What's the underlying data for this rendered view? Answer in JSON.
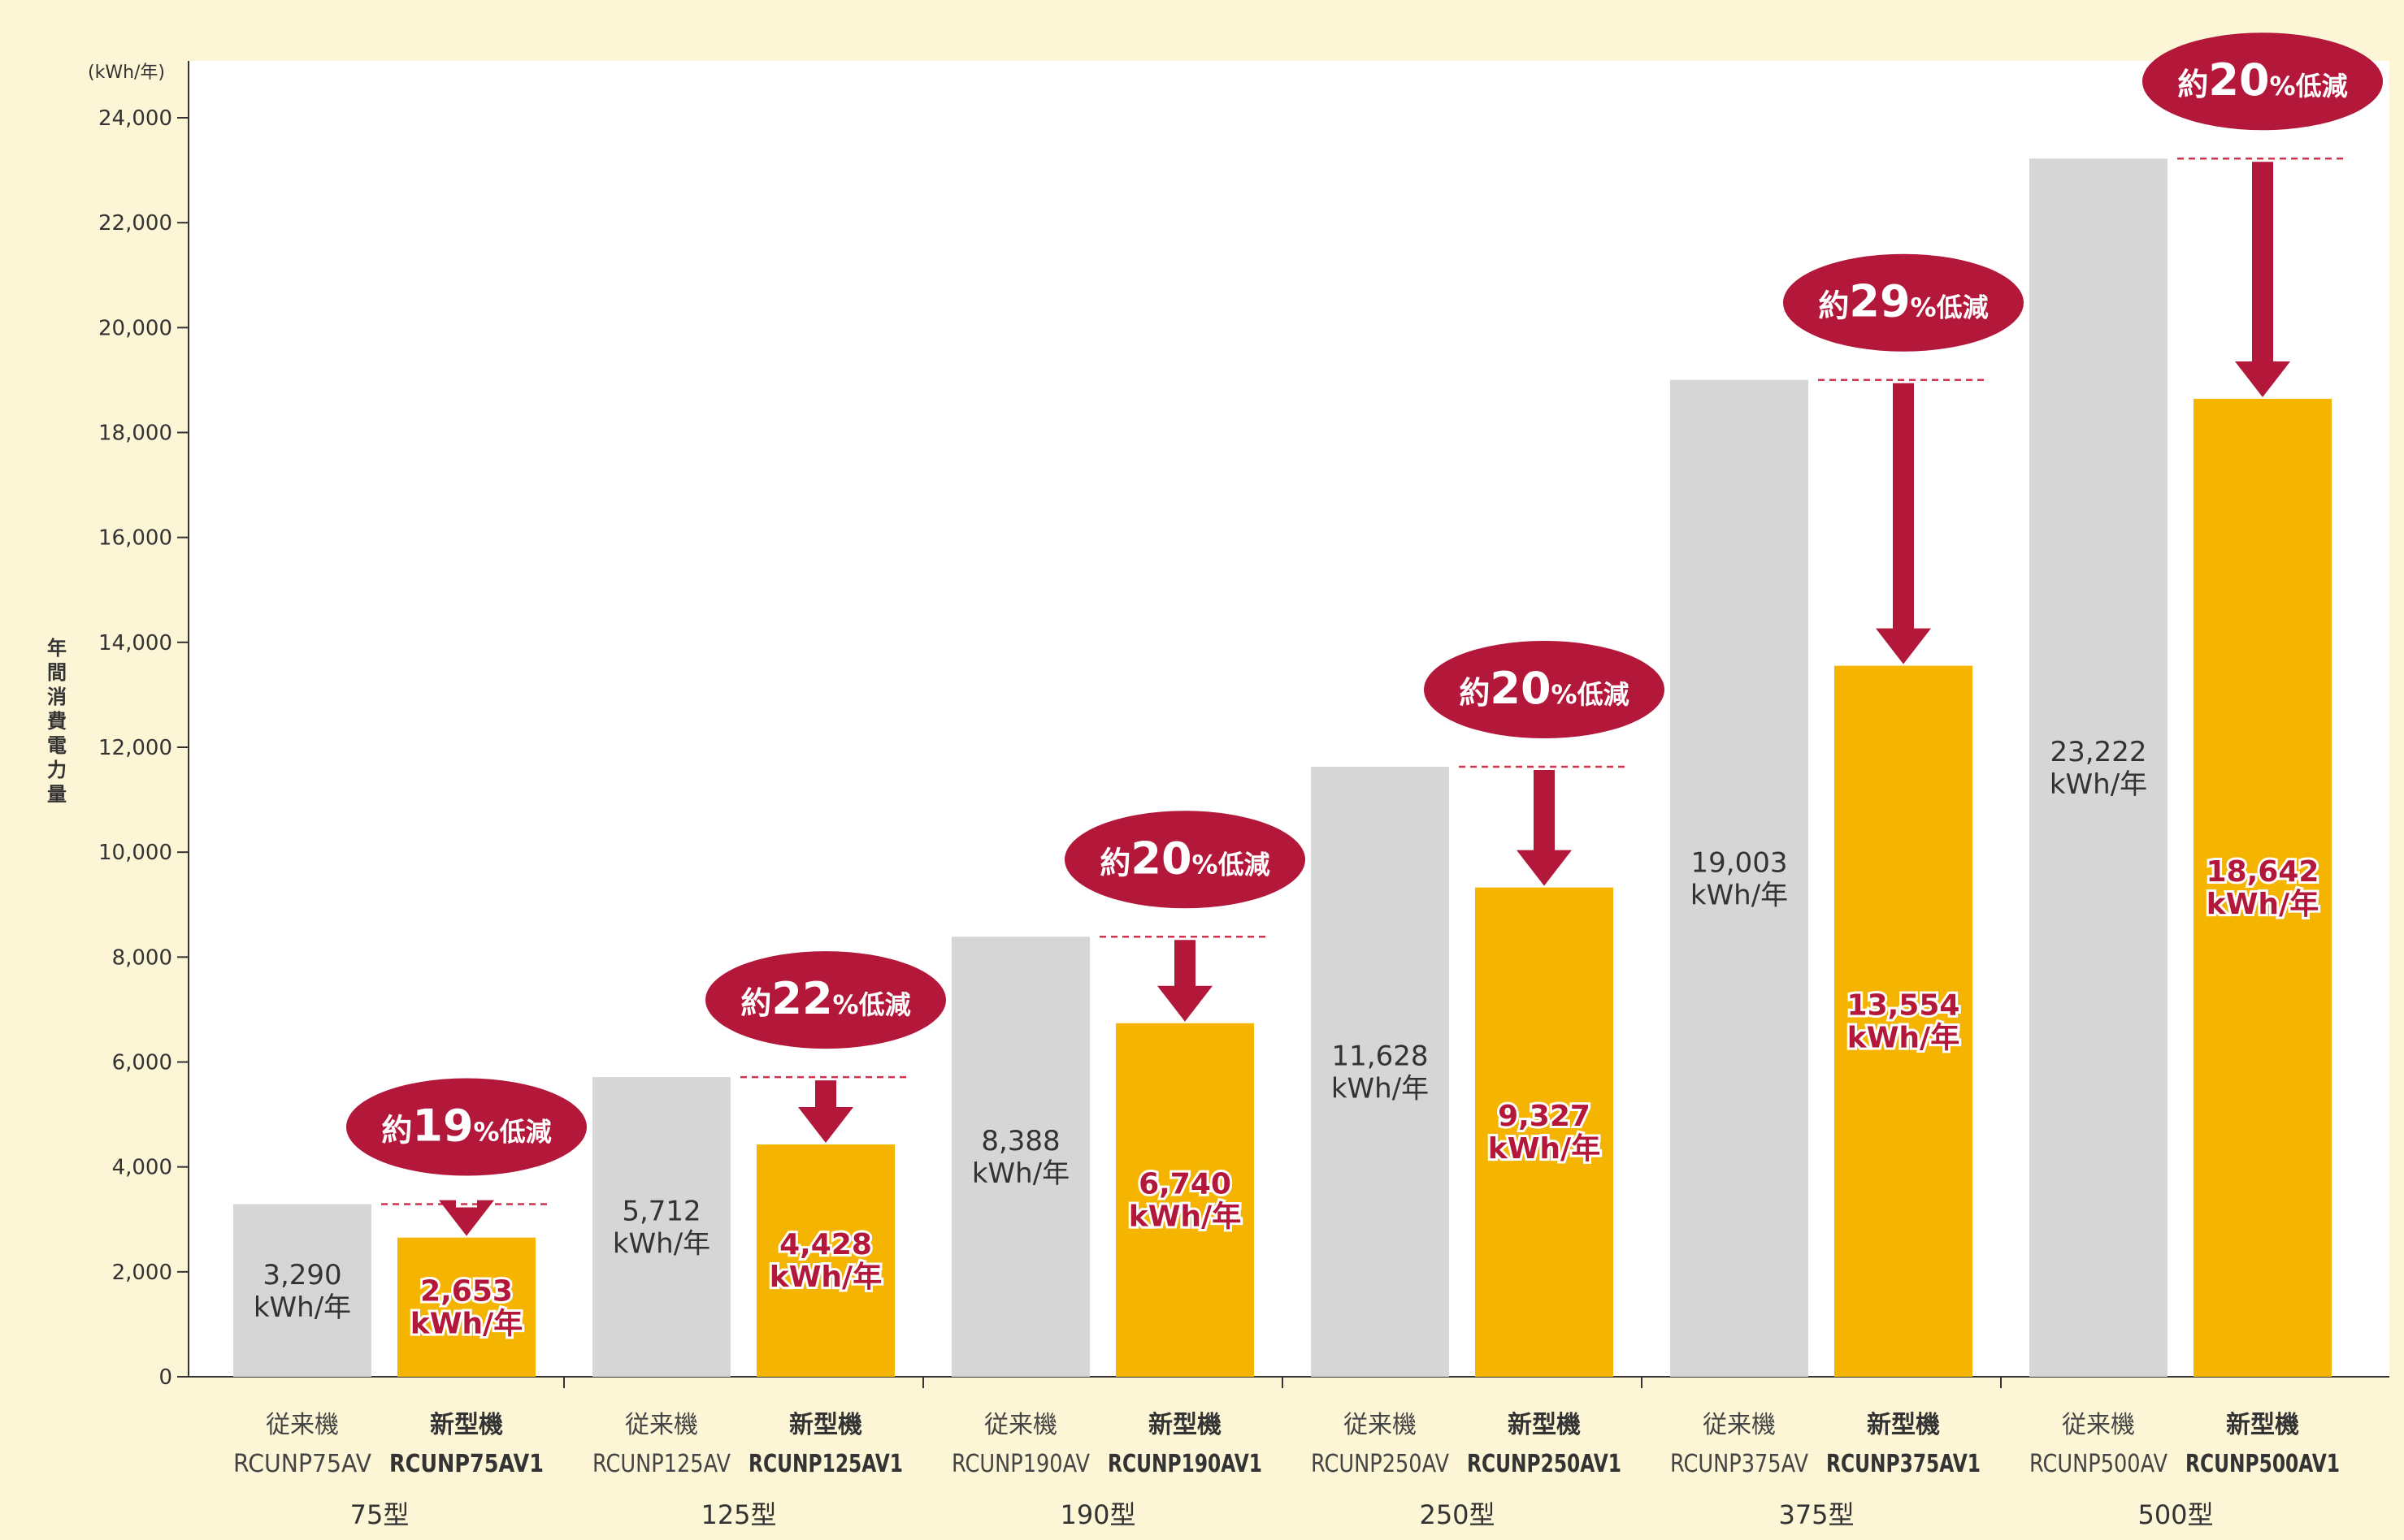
{
  "chart_data": {
    "type": "bar",
    "unit_label": "(kWh/年)",
    "ylabel": "年間消費電力量",
    "ylim": [
      0,
      24000
    ],
    "yticks": [
      "0",
      "2,000",
      "4,000",
      "6,000",
      "8,000",
      "10,000",
      "12,000",
      "14,000",
      "16,000",
      "18,000",
      "20,000",
      "22,000",
      "24,000"
    ],
    "colors": {
      "old": "#d6d6d6",
      "new": "#f5b400",
      "accent": "#b3173a"
    },
    "groups": [
      {
        "label": "75型",
        "old": {
          "name": "従来機",
          "model": "RCUNP75AV",
          "value": 3290,
          "value_text": "3,290",
          "unit": "kWh/年"
        },
        "new": {
          "name": "新型機",
          "model": "RCUNP75AV1",
          "value": 2653,
          "value_text": "2,653",
          "unit": "kWh/年"
        },
        "reduction": {
          "prefix": "約",
          "number": "19",
          "suffix": "%低減"
        }
      },
      {
        "label": "125型",
        "old": {
          "name": "従来機",
          "model": "RCUNP125AV",
          "value": 5712,
          "value_text": "5,712",
          "unit": "kWh/年"
        },
        "new": {
          "name": "新型機",
          "model": "RCUNP125AV1",
          "value": 4428,
          "value_text": "4,428",
          "unit": "kWh/年"
        },
        "reduction": {
          "prefix": "約",
          "number": "22",
          "suffix": "%低減"
        }
      },
      {
        "label": "190型",
        "old": {
          "name": "従来機",
          "model": "RCUNP190AV",
          "value": 8388,
          "value_text": "8,388",
          "unit": "kWh/年"
        },
        "new": {
          "name": "新型機",
          "model": "RCUNP190AV1",
          "value": 6740,
          "value_text": "6,740",
          "unit": "kWh/年"
        },
        "reduction": {
          "prefix": "約",
          "number": "20",
          "suffix": "%低減"
        }
      },
      {
        "label": "250型",
        "old": {
          "name": "従来機",
          "model": "RCUNP250AV",
          "value": 11628,
          "value_text": "11,628",
          "unit": "kWh/年"
        },
        "new": {
          "name": "新型機",
          "model": "RCUNP250AV1",
          "value": 9327,
          "value_text": "9,327",
          "unit": "kWh/年"
        },
        "reduction": {
          "prefix": "約",
          "number": "20",
          "suffix": "%低減"
        }
      },
      {
        "label": "375型",
        "old": {
          "name": "従来機",
          "model": "RCUNP375AV",
          "value": 19003,
          "value_text": "19,003",
          "unit": "kWh/年"
        },
        "new": {
          "name": "新型機",
          "model": "RCUNP375AV1",
          "value": 13554,
          "value_text": "13,554",
          "unit": "kWh/年"
        },
        "reduction": {
          "prefix": "約",
          "number": "29",
          "suffix": "%低減"
        }
      },
      {
        "label": "500型",
        "old": {
          "name": "従来機",
          "model": "RCUNP500AV",
          "value": 23222,
          "value_text": "23,222",
          "unit": "kWh/年"
        },
        "new": {
          "name": "新型機",
          "model": "RCUNP500AV1",
          "value": 18642,
          "value_text": "18,642",
          "unit": "kWh/年"
        },
        "reduction": {
          "prefix": "約",
          "number": "20",
          "suffix": "%低減"
        }
      }
    ]
  }
}
